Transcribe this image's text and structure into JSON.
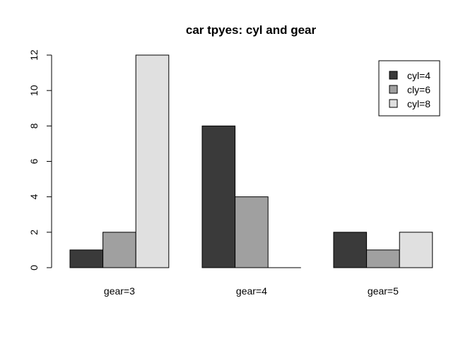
{
  "chart_data": {
    "type": "bar",
    "title": "car tpyes: cyl and gear",
    "xlabel": "",
    "ylabel": "",
    "categories": [
      "gear=3",
      "gear=4",
      "gear=5"
    ],
    "series": [
      {
        "name": "cyl=4",
        "color": "#3a3a3a",
        "values": [
          1,
          8,
          2
        ]
      },
      {
        "name": "cly=6",
        "color": "#a0a0a0",
        "values": [
          2,
          4,
          1
        ]
      },
      {
        "name": "cyl=8",
        "color": "#e0e0e0",
        "values": [
          12,
          0,
          2
        ]
      }
    ],
    "ylim": [
      0,
      12
    ],
    "yticks": [
      0,
      2,
      4,
      6,
      8,
      10,
      12
    ],
    "grid": false,
    "legend_position": "top-right"
  }
}
